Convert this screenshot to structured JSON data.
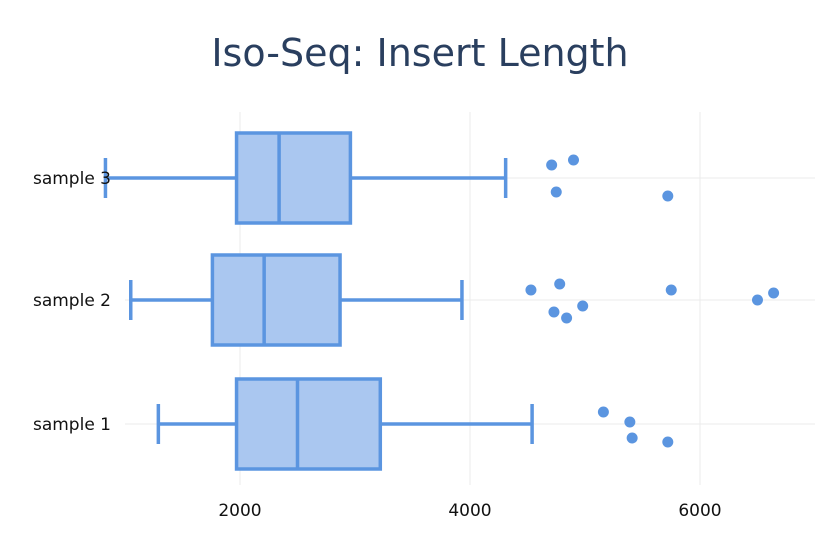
{
  "chart_data": {
    "type": "box",
    "title": "Iso-Seq: Insert Length",
    "orientation": "horizontal",
    "xlim": [
      1000,
      7000
    ],
    "xticks": [
      2000,
      4000,
      6000
    ],
    "grid": true,
    "colors": {
      "fill": "#aac7f0",
      "stroke": "#5b95e0",
      "title": "#2a3f5f"
    },
    "series": [
      {
        "label": "sample 1",
        "whisker_low": 1290,
        "q1": 1970,
        "median": 2500,
        "q3": 3220,
        "whisker_high": 4540,
        "outliers": [
          5160,
          5410,
          5390,
          5720
        ]
      },
      {
        "label": "sample 2",
        "whisker_low": 1050,
        "q1": 1760,
        "median": 2210,
        "q3": 2870,
        "whisker_high": 3930,
        "outliers": [
          4530,
          4780,
          4730,
          4840,
          4980,
          5750,
          6500,
          6640
        ]
      },
      {
        "label": "sample 3",
        "whisker_low": 830,
        "q1": 1970,
        "median": 2340,
        "q3": 2960,
        "whisker_high": 4310,
        "outliers": [
          4710,
          4900,
          4750,
          5720
        ]
      }
    ]
  }
}
